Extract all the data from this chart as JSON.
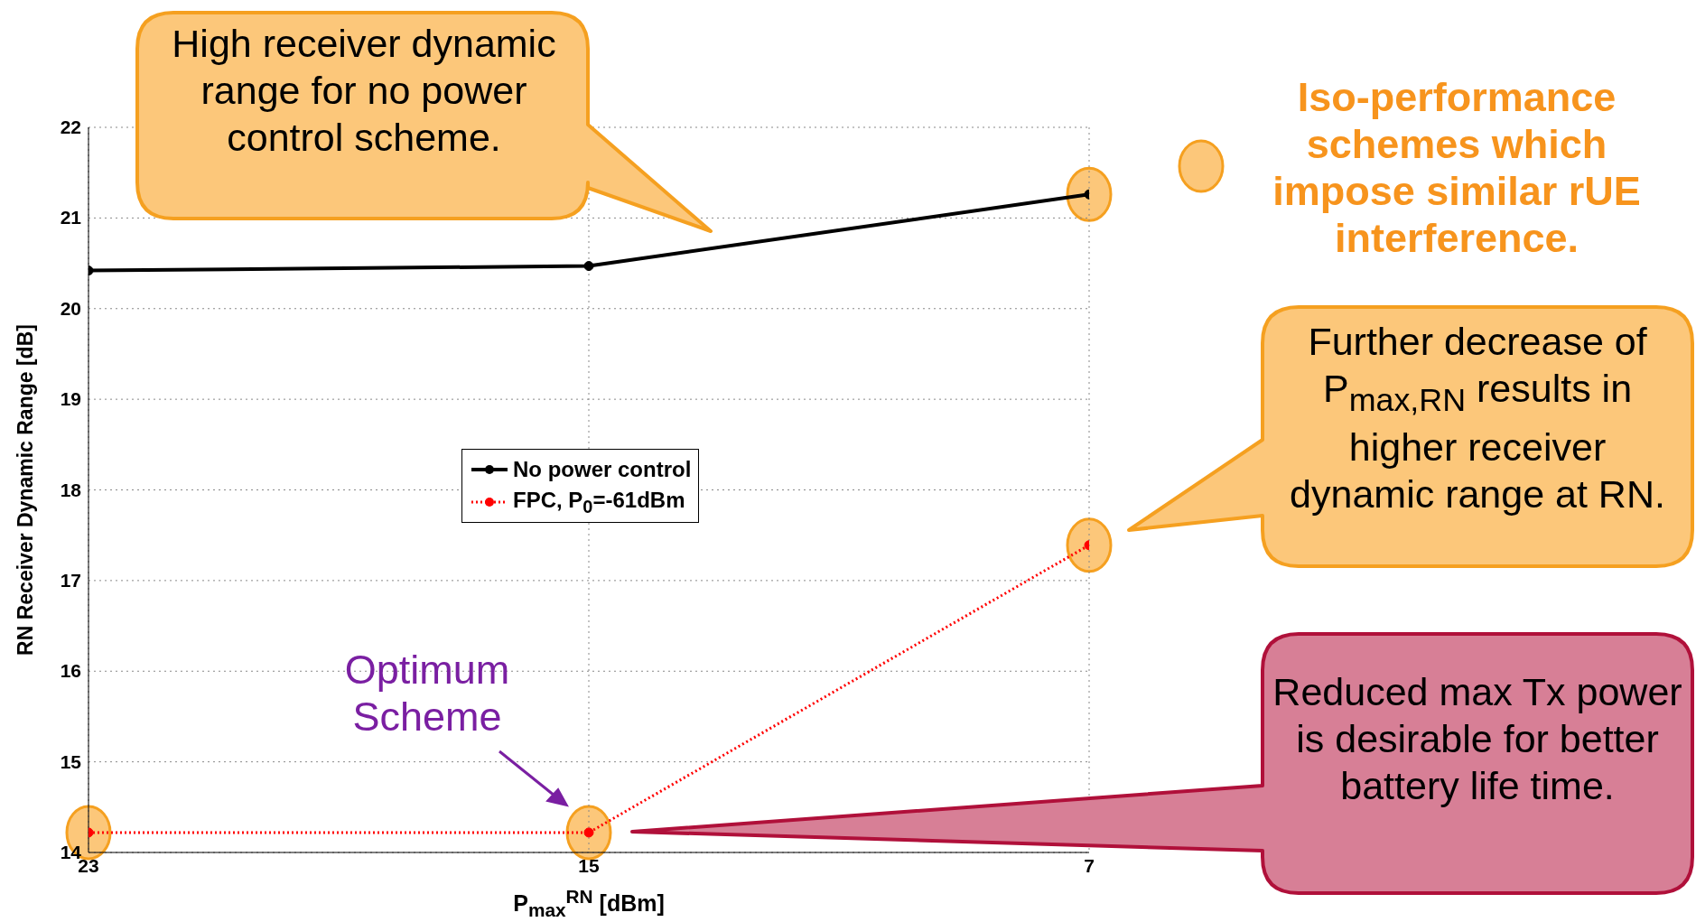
{
  "chart_data": {
    "type": "line",
    "xlabel": "P$_{max}$$^{RN}$ [dBm]",
    "ylabel": "RN Receiver Dynamic Range [dB]",
    "x": [
      23,
      15,
      7
    ],
    "xlim": [
      23,
      7
    ],
    "xticks": [
      23,
      15,
      7
    ],
    "ylim": [
      14,
      22
    ],
    "yticks": [
      14,
      15,
      16,
      17,
      18,
      19,
      20,
      21,
      22
    ],
    "series": [
      {
        "name": "No power control",
        "color": "#000000",
        "values": [
          20.42,
          20.47,
          21.26
        ],
        "line_style": "solid"
      },
      {
        "name": "FPC, P$_{0}$=-61dBm",
        "color": "#ff0000",
        "values": [
          14.22,
          14.22,
          17.39
        ],
        "line_style": "dotted"
      }
    ],
    "marker": "circle",
    "grid": true,
    "legend": "center",
    "annotations": [
      "High receiver dynamic range for no power control scheme.",
      "Iso-performance schemes which impose similar rUE interference.",
      "Further decrease of P$_{max,RN}$ results in higher receiver dynamic range at RN.",
      "Reduced max Tx power is desirable for better battery life time.",
      "Optimum Scheme"
    ]
  }
}
